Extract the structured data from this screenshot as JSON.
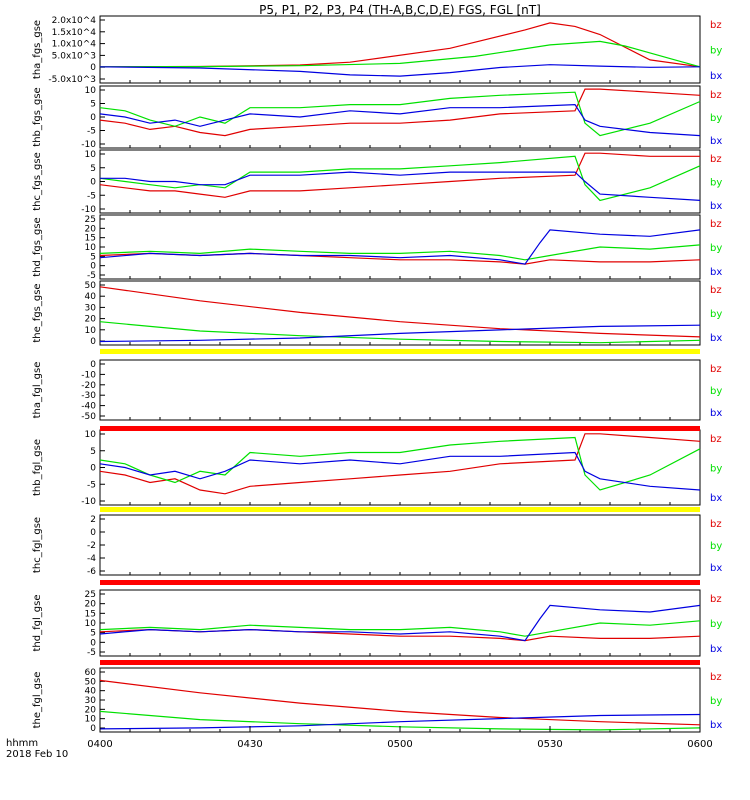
{
  "title": "P5, P1, P2, P3, P4 (TH-A,B,C,D,E) FGS, FGL [nT]",
  "footer": {
    "line1": "hhmm",
    "line2": "2018 Feb 10"
  },
  "colors": {
    "bz": "#e00000",
    "by": "#00e000",
    "bx": "#0000e0",
    "yellow": "#ffff00",
    "red": "#ff0000"
  },
  "chart_data": {
    "type": "line",
    "x_ticks": [
      "0400",
      "0430",
      "0500",
      "0530",
      "0600"
    ],
    "legend": [
      "bz",
      "by",
      "bx"
    ],
    "panels": [
      {
        "ylabel": "tha_fgs_gse",
        "yticks": [
          "2.0x10^4",
          "1.5x10^4",
          "1.0x10^4",
          "5.0x10^3",
          "0",
          "-5.0x10^3"
        ],
        "ylim": [
          -7000,
          22000
        ],
        "series": [
          {
            "name": "bz",
            "color": "#e00000",
            "x": [
              0,
              20,
              40,
              50,
              70,
              85,
              90,
              95,
              100,
              110,
              120
            ],
            "y": [
              0,
              150,
              800,
              2000,
              8000,
              16000,
              19000,
              17500,
              14000,
              3000,
              0
            ]
          },
          {
            "name": "by",
            "color": "#00e000",
            "x": [
              0,
              20,
              40,
              60,
              75,
              90,
              100,
              105,
              115,
              120
            ],
            "y": [
              0,
              100,
              500,
              1500,
              4500,
              9500,
              11000,
              9000,
              3000,
              0
            ]
          },
          {
            "name": "bx",
            "color": "#0000e0",
            "x": [
              0,
              20,
              40,
              50,
              60,
              70,
              80,
              90,
              100,
              110,
              120
            ],
            "y": [
              0,
              -500,
              -2000,
              -3500,
              -4000,
              -2500,
              -300,
              900,
              300,
              -200,
              0
            ]
          }
        ]
      },
      {
        "ylabel": "thb_fgs_gse",
        "yticks": [
          "10",
          "5",
          "0",
          "-5",
          "-10"
        ],
        "ylim": [
          -10,
          10
        ],
        "series": [
          {
            "name": "bz",
            "color": "#e00000",
            "x": [
              0,
              5,
              10,
              15,
              20,
              25,
              30,
              40,
              50,
              60,
              70,
              80,
              95,
              97,
              100,
              110,
              120
            ],
            "y": [
              -1,
              -2,
              -4,
              -3,
              -5,
              -6,
              -4,
              -3,
              -2,
              -2,
              -1,
              1,
              2,
              9,
              9,
              8,
              7
            ]
          },
          {
            "name": "by",
            "color": "#00e000",
            "x": [
              0,
              5,
              10,
              15,
              20,
              25,
              30,
              40,
              50,
              60,
              70,
              80,
              95,
              97,
              100,
              110,
              120
            ],
            "y": [
              3,
              2,
              -1,
              -3,
              0,
              -2,
              3,
              3,
              4,
              4,
              6,
              7,
              8,
              -2,
              -6,
              -2,
              5
            ]
          },
          {
            "name": "bx",
            "color": "#0000e0",
            "x": [
              0,
              5,
              10,
              15,
              20,
              25,
              30,
              40,
              50,
              60,
              70,
              80,
              95,
              97,
              100,
              110,
              120
            ],
            "y": [
              1,
              0,
              -2,
              -1,
              -3,
              -1,
              1,
              0,
              2,
              1,
              3,
              3,
              4,
              -1,
              -3,
              -5,
              -6
            ]
          }
        ]
      },
      {
        "ylabel": "thc_fgs_gse",
        "yticks": [
          "10",
          "5",
          "0",
          "-5",
          "-10"
        ],
        "ylim": [
          -10,
          10
        ],
        "series": [
          {
            "name": "bz",
            "color": "#e00000",
            "x": [
              0,
              5,
              10,
              15,
              20,
              25,
              30,
              40,
              50,
              60,
              70,
              80,
              95,
              97,
              100,
              110,
              120
            ],
            "y": [
              -1,
              -2,
              -3,
              -3,
              -4,
              -5,
              -3,
              -3,
              -2,
              -1,
              0,
              1,
              2,
              9,
              9,
              8,
              8
            ]
          },
          {
            "name": "by",
            "color": "#00e000",
            "x": [
              0,
              5,
              10,
              15,
              20,
              25,
              30,
              40,
              50,
              60,
              70,
              80,
              95,
              97,
              100,
              110,
              120
            ],
            "y": [
              1,
              0,
              -1,
              -2,
              -1,
              -2,
              3,
              3,
              4,
              4,
              5,
              6,
              8,
              -1,
              -6,
              -2,
              5
            ]
          },
          {
            "name": "bx",
            "color": "#0000e0",
            "x": [
              0,
              5,
              10,
              15,
              20,
              25,
              30,
              40,
              50,
              60,
              70,
              80,
              95,
              97,
              100,
              110,
              120
            ],
            "y": [
              1,
              1,
              0,
              0,
              -1,
              -1,
              2,
              2,
              3,
              2,
              3,
              3,
              3,
              0,
              -4,
              -5,
              -6
            ]
          }
        ]
      },
      {
        "ylabel": "thd_fgs_gse",
        "yticks": [
          "25",
          "20",
          "15",
          "10",
          "5",
          "0",
          "-5"
        ],
        "ylim": [
          -5,
          25
        ],
        "series": [
          {
            "name": "bz",
            "color": "#e00000",
            "x": [
              0,
              10,
              20,
              30,
              40,
              50,
              60,
              70,
              80,
              85,
              90,
              100,
              110,
              120
            ],
            "y": [
              6,
              7,
              6,
              7,
              6,
              5,
              4,
              4,
              3,
              2,
              4,
              3,
              3,
              4
            ]
          },
          {
            "name": "by",
            "color": "#00e000",
            "x": [
              0,
              10,
              20,
              30,
              40,
              50,
              60,
              70,
              80,
              85,
              90,
              100,
              110,
              120
            ],
            "y": [
              7,
              8,
              7,
              9,
              8,
              7,
              7,
              8,
              6,
              4,
              6,
              10,
              9,
              11
            ]
          },
          {
            "name": "bx",
            "color": "#0000e0",
            "x": [
              0,
              10,
              20,
              30,
              40,
              50,
              60,
              70,
              80,
              85,
              88,
              90,
              100,
              110,
              120
            ],
            "y": [
              5,
              7,
              6,
              7,
              6,
              6,
              5,
              6,
              4,
              2,
              12,
              18,
              16,
              15,
              18
            ]
          }
        ]
      },
      {
        "ylabel": "the_fgs_gse",
        "yticks": [
          "50",
          "40",
          "30",
          "20",
          "10",
          "0"
        ],
        "ylim": [
          0,
          55
        ],
        "series": [
          {
            "name": "bz",
            "color": "#e00000",
            "x": [
              0,
              20,
              40,
              60,
              80,
              100,
              120
            ],
            "y": [
              50,
              38,
              28,
              20,
              14,
              10,
              7
            ]
          },
          {
            "name": "by",
            "color": "#00e000",
            "x": [
              0,
              20,
              40,
              60,
              80,
              100,
              120
            ],
            "y": [
              20,
              12,
              8,
              5,
              3,
              2,
              4
            ]
          },
          {
            "name": "bx",
            "color": "#0000e0",
            "x": [
              0,
              20,
              40,
              60,
              80,
              100,
              120
            ],
            "y": [
              3,
              4,
              6,
              10,
              13,
              16,
              17
            ]
          }
        ]
      },
      {
        "ylabel": "tha_fgl_gse",
        "yticks": [
          "0",
          "-10",
          "-20",
          "-30",
          "-40",
          "-50"
        ],
        "ylim": [
          -55,
          3
        ],
        "series": []
      },
      {
        "ylabel": "thb_fgl_gse",
        "yticks": [
          "10",
          "5",
          "0",
          "-5",
          "-10"
        ],
        "ylim": [
          -10,
          10
        ],
        "series": [
          {
            "name": "bz",
            "color": "#e00000",
            "x": [
              0,
              5,
              10,
              15,
              20,
              25,
              30,
              40,
              50,
              60,
              70,
              80,
              95,
              97,
              100,
              110,
              120
            ],
            "y": [
              -1,
              -2,
              -4,
              -3,
              -6,
              -7,
              -5,
              -4,
              -3,
              -2,
              -1,
              1,
              2,
              9,
              9,
              8,
              7
            ]
          },
          {
            "name": "by",
            "color": "#00e000",
            "x": [
              0,
              5,
              10,
              15,
              20,
              25,
              30,
              40,
              50,
              60,
              70,
              80,
              95,
              97,
              100,
              110,
              120
            ],
            "y": [
              2,
              1,
              -2,
              -4,
              -1,
              -2,
              4,
              3,
              4,
              4,
              6,
              7,
              8,
              -2,
              -6,
              -2,
              5
            ]
          },
          {
            "name": "bx",
            "color": "#0000e0",
            "x": [
              0,
              5,
              10,
              15,
              20,
              25,
              30,
              40,
              50,
              60,
              70,
              80,
              95,
              97,
              100,
              110,
              120
            ],
            "y": [
              1,
              0,
              -2,
              -1,
              -3,
              -1,
              2,
              1,
              2,
              1,
              3,
              3,
              4,
              -1,
              -3,
              -5,
              -6
            ]
          }
        ]
      },
      {
        "ylabel": "thc_fgl_gse",
        "yticks": [
          "2",
          "0",
          "-2",
          "-4",
          "-6"
        ],
        "ylim": [
          -7,
          3
        ],
        "series": []
      },
      {
        "ylabel": "thd_fgl_gse",
        "yticks": [
          "25",
          "20",
          "15",
          "10",
          "5",
          "0",
          "-5"
        ],
        "ylim": [
          -5,
          25
        ],
        "series": [
          {
            "name": "bz",
            "color": "#e00000",
            "x": [
              0,
              10,
              20,
              30,
              40,
              50,
              60,
              70,
              80,
              85,
              90,
              100,
              110,
              120
            ],
            "y": [
              6,
              7,
              6,
              7,
              6,
              5,
              4,
              4,
              3,
              2,
              4,
              3,
              3,
              4
            ]
          },
          {
            "name": "by",
            "color": "#00e000",
            "x": [
              0,
              10,
              20,
              30,
              40,
              50,
              60,
              70,
              80,
              85,
              90,
              100,
              110,
              120
            ],
            "y": [
              7,
              8,
              7,
              9,
              8,
              7,
              7,
              8,
              6,
              4,
              6,
              10,
              9,
              11
            ]
          },
          {
            "name": "bx",
            "color": "#0000e0",
            "x": [
              0,
              10,
              20,
              30,
              40,
              50,
              60,
              70,
              80,
              85,
              88,
              90,
              100,
              110,
              120
            ],
            "y": [
              5,
              7,
              6,
              7,
              6,
              6,
              5,
              6,
              4,
              2,
              12,
              18,
              16,
              15,
              18
            ]
          }
        ]
      },
      {
        "ylabel": "the_fgl_gse",
        "yticks": [
          "60",
          "50",
          "40",
          "30",
          "20",
          "10",
          "0"
        ],
        "ylim": [
          0,
          62
        ],
        "series": [
          {
            "name": "bz",
            "color": "#e00000",
            "x": [
              0,
              20,
              40,
              60,
              80,
              100,
              120
            ],
            "y": [
              50,
              38,
              28,
              20,
              14,
              10,
              7
            ]
          },
          {
            "name": "by",
            "color": "#00e000",
            "x": [
              0,
              20,
              40,
              60,
              80,
              100,
              120
            ],
            "y": [
              20,
              12,
              8,
              5,
              3,
              2,
              4
            ]
          },
          {
            "name": "bx",
            "color": "#0000e0",
            "x": [
              0,
              20,
              40,
              60,
              80,
              100,
              120
            ],
            "y": [
              3,
              4,
              6,
              10,
              13,
              16,
              17
            ]
          }
        ]
      }
    ]
  }
}
